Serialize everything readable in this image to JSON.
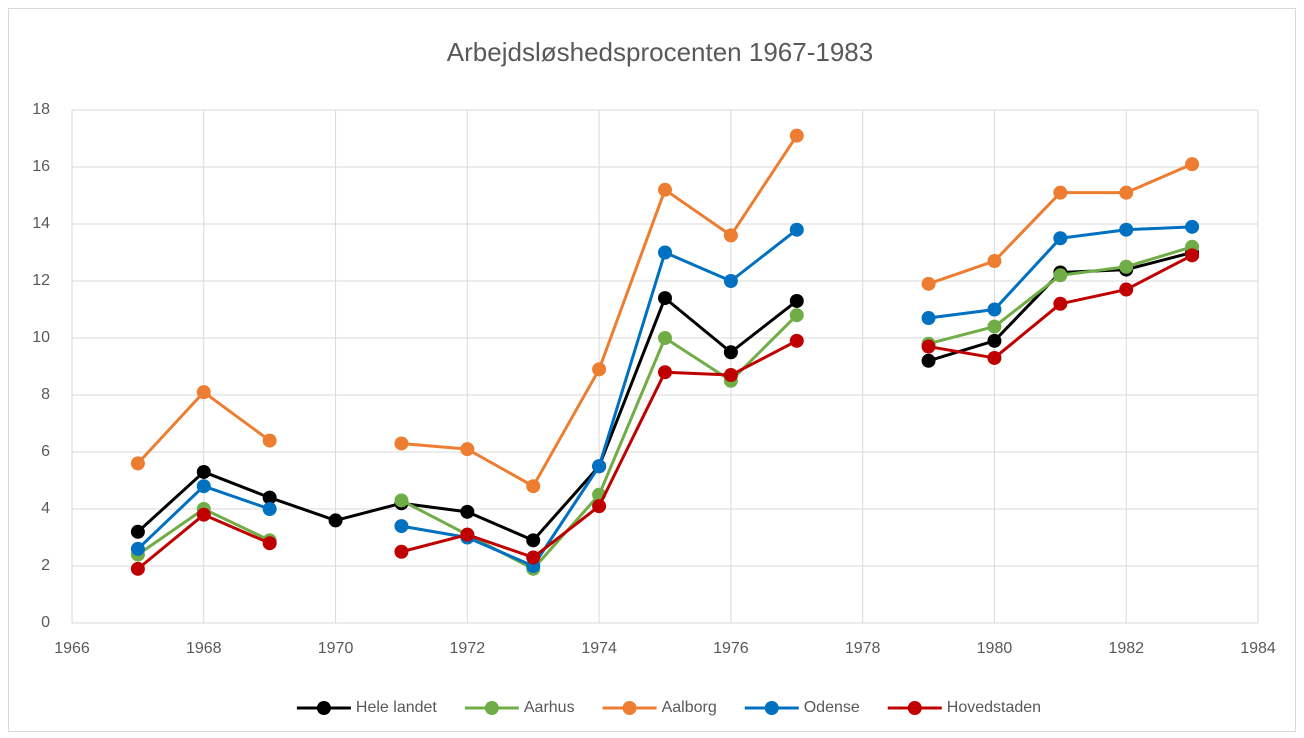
{
  "chart_data": {
    "type": "line",
    "title": "Arbejdsløshedsprocenten 1967-1983",
    "x": [
      1967,
      1968,
      1969,
      1970,
      1971,
      1972,
      1973,
      1974,
      1975,
      1976,
      1977,
      1978,
      1979,
      1980,
      1981,
      1982,
      1983
    ],
    "series": [
      {
        "name": "Hele landet",
        "color": "#000000",
        "values": [
          3.2,
          5.3,
          4.4,
          3.6,
          4.2,
          3.9,
          2.9,
          5.5,
          11.4,
          9.5,
          11.3,
          null,
          9.2,
          9.9,
          12.3,
          12.4,
          13.0
        ]
      },
      {
        "name": "Aarhus",
        "color": "#70ad47",
        "values": [
          2.4,
          4.0,
          2.9,
          null,
          4.3,
          3.1,
          1.9,
          4.5,
          10.0,
          8.5,
          10.8,
          null,
          9.8,
          10.4,
          12.2,
          12.5,
          13.2
        ]
      },
      {
        "name": "Aalborg",
        "color": "#ed7d31",
        "values": [
          5.6,
          8.1,
          6.4,
          null,
          6.3,
          6.1,
          4.8,
          8.9,
          15.2,
          13.6,
          17.1,
          null,
          11.9,
          12.7,
          15.1,
          15.1,
          16.1
        ]
      },
      {
        "name": "Odense",
        "color": "#0070c0",
        "values": [
          2.6,
          4.8,
          4.0,
          null,
          3.4,
          3.0,
          2.0,
          5.5,
          13.0,
          12.0,
          13.8,
          null,
          10.7,
          11.0,
          13.5,
          13.8,
          13.9
        ]
      },
      {
        "name": "Hovedstaden",
        "color": "#c00000",
        "values": [
          1.9,
          3.8,
          2.8,
          null,
          2.5,
          3.1,
          2.3,
          4.1,
          8.8,
          8.7,
          9.9,
          null,
          9.7,
          9.3,
          11.2,
          11.7,
          12.9
        ]
      }
    ],
    "xlim": [
      1966,
      1984
    ],
    "xticks": [
      1966,
      1968,
      1970,
      1972,
      1974,
      1976,
      1978,
      1980,
      1982,
      1984
    ],
    "ylim": [
      0,
      18
    ],
    "yticks": [
      0,
      2,
      4,
      6,
      8,
      10,
      12,
      14,
      16,
      18
    ],
    "grid": true,
    "legend": "bottom"
  }
}
